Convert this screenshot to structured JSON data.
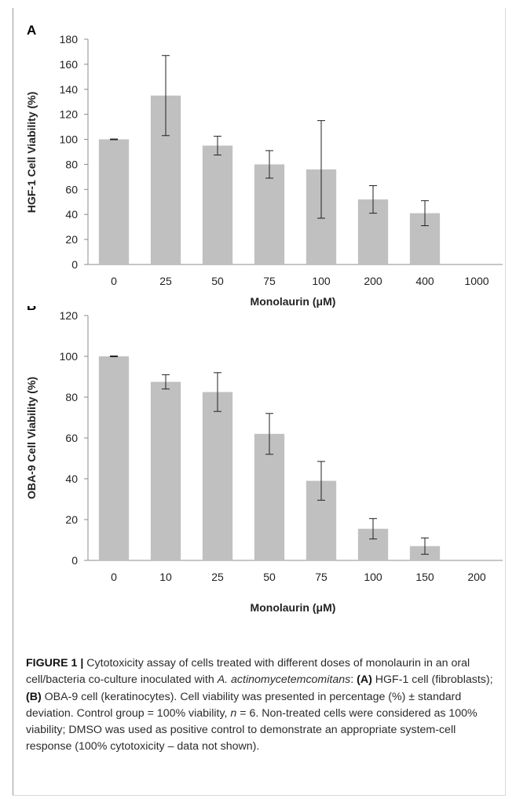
{
  "panels": [
    {
      "letter": "A",
      "ylabel": "HGF-1 Cell Viability (%)",
      "xlabel": "Monolaurin (μM)"
    },
    {
      "letter": "B",
      "ylabel": "OBA-9 Cell Viability (%)",
      "xlabel": "Monolaurin (μM)"
    }
  ],
  "chart_data": [
    {
      "type": "bar",
      "title": "",
      "xlabel": "Monolaurin (μM)",
      "ylabel": "HGF-1 Cell Viability (%)",
      "ylim": [
        0,
        180
      ],
      "yticks": [
        0,
        20,
        40,
        60,
        80,
        100,
        120,
        140,
        160,
        180
      ],
      "categories": [
        "0",
        "25",
        "50",
        "75",
        "100",
        "200",
        "400",
        "1000"
      ],
      "values": [
        100,
        135,
        95,
        80,
        76,
        52,
        41,
        0
      ],
      "errors": [
        0.3,
        32,
        7.5,
        11,
        39,
        11,
        10,
        0
      ],
      "grid": false,
      "colors": {
        "bar": "#c0c0c0",
        "error_bar": "#222222"
      }
    },
    {
      "type": "bar",
      "title": "",
      "xlabel": "Monolaurin (μM)",
      "ylabel": "OBA-9 Cell Viability (%)",
      "ylim": [
        0,
        120
      ],
      "yticks": [
        0,
        20,
        40,
        60,
        80,
        100,
        120
      ],
      "categories": [
        "0",
        "10",
        "25",
        "50",
        "75",
        "100",
        "150",
        "200"
      ],
      "values": [
        100,
        87.5,
        82.5,
        62,
        39,
        15.5,
        7,
        0
      ],
      "errors": [
        0.2,
        3.5,
        9.5,
        10,
        9.5,
        5,
        4,
        0
      ],
      "grid": false,
      "colors": {
        "bar": "#c0c0c0",
        "error_bar": "#222222"
      }
    }
  ],
  "caption": {
    "label": "FIGURE 1 |",
    "part1": " Cytotoxicity assay of cells treated with different doses of monolaurin in an oral cell/bacteria co-culture inoculated with ",
    "species": "A. actinomycetemcomitans",
    "part2": ": ",
    "a_ref": "(A)",
    "a_text": " HGF-1 cell (fibroblasts); ",
    "b_ref": "(B)",
    "b_text": " OBA-9 cell (keratinocytes). Cell viability was presented in percentage (%) ± standard deviation. Control group = 100% viability, ",
    "n_var": "n",
    "part3": " = 6. Non-treated cells were considered as 100% viability; DMSO was used as positive control to demonstrate an appropriate system-cell response (100% cytotoxicity – data not shown)."
  }
}
